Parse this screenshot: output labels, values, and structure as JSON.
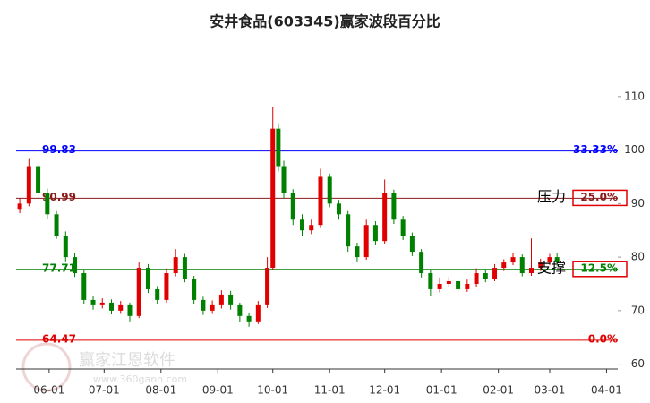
{
  "chart_data": {
    "type": "candlestick",
    "title": "安井食品(603345)赢家波段百分比",
    "xlim": [
      -18,
      315
    ],
    "ylim": [
      59.1,
      118
    ],
    "xticks": [
      {
        "value": 0,
        "label": "06-01"
      },
      {
        "value": 30,
        "label": "07-01"
      },
      {
        "value": 61,
        "label": "08-01"
      },
      {
        "value": 92,
        "label": "09-01"
      },
      {
        "value": 122,
        "label": "10-01"
      },
      {
        "value": 153,
        "label": "11-01"
      },
      {
        "value": 183,
        "label": "12-01"
      },
      {
        "value": 214,
        "label": "01-01"
      },
      {
        "value": 245,
        "label": "02-01"
      },
      {
        "value": 273,
        "label": "03-01"
      },
      {
        "value": 304,
        "label": "04-01"
      }
    ],
    "yticks": [
      60,
      70,
      80,
      90,
      100,
      110
    ],
    "up_color": "#e00000",
    "down_color": "#008000",
    "x": [
      -16,
      -11,
      -6,
      -1,
      4,
      9,
      14,
      19,
      24,
      29,
      34,
      39,
      44,
      49,
      54,
      59,
      64,
      69,
      74,
      79,
      84,
      89,
      94,
      99,
      104,
      109,
      114,
      119,
      122,
      125,
      128,
      133,
      138,
      143,
      148,
      153,
      158,
      163,
      168,
      173,
      178,
      183,
      188,
      193,
      198,
      203,
      208,
      213,
      218,
      223,
      228,
      233,
      238,
      243,
      248,
      253,
      258,
      263,
      268,
      273,
      277
    ],
    "open": [
      89,
      90,
      97,
      92,
      88,
      84,
      80,
      77,
      72,
      71,
      71.5,
      70,
      71,
      69,
      78,
      74,
      72,
      77,
      80,
      76,
      72,
      70,
      71,
      73,
      71,
      69,
      68,
      71,
      78,
      104,
      97,
      92,
      87,
      85,
      86,
      95,
      90,
      88,
      82,
      80,
      86,
      83,
      92,
      87,
      84,
      81,
      77,
      74,
      75,
      75.5,
      74,
      75,
      77,
      76,
      78,
      79,
      80,
      77,
      78,
      79,
      80
    ],
    "high": [
      91,
      98.5,
      97.8,
      92.8,
      88.6,
      84.8,
      80.7,
      77.6,
      72.8,
      72.3,
      72.1,
      71.8,
      71.5,
      79,
      78.7,
      74.6,
      77.9,
      81.5,
      80.6,
      76.5,
      72.6,
      71.9,
      73.8,
      73.7,
      71.5,
      69.6,
      71.8,
      80,
      108,
      105,
      98,
      92.7,
      88,
      87,
      96.5,
      95.6,
      90.7,
      88.6,
      82.7,
      87,
      86.7,
      94.5,
      92.6,
      87.7,
      84.6,
      81.5,
      77.6,
      76.2,
      76.3,
      76,
      75.8,
      77.9,
      77.6,
      78.7,
      79.6,
      80.8,
      80.5,
      83.5,
      79.7,
      80.6,
      80.7
    ],
    "low": [
      88.2,
      89.5,
      91,
      87.2,
      83.4,
      79.2,
      76.3,
      71.2,
      70.2,
      70.4,
      69.3,
      69.4,
      68,
      68.6,
      73.3,
      71.2,
      71.5,
      76.4,
      75.3,
      71.2,
      69.2,
      69.4,
      70.4,
      70.2,
      67.8,
      67,
      67.5,
      70.5,
      77.5,
      96,
      91,
      86,
      84,
      84.3,
      85.4,
      89.3,
      87,
      81,
      79.2,
      79.5,
      82.2,
      82.5,
      86.2,
      83.2,
      80.2,
      76.2,
      72.8,
      73.4,
      74.4,
      73.3,
      73.5,
      74.5,
      75.3,
      75.5,
      77.4,
      78.5,
      76.4,
      76.5,
      77.4,
      78.5,
      78.3
    ],
    "close": [
      90,
      97,
      92,
      88,
      84,
      80,
      77,
      72,
      71,
      71.5,
      70,
      71,
      69,
      78,
      74,
      72,
      77,
      80,
      76,
      72,
      70,
      71,
      73,
      71,
      69,
      68,
      71,
      78,
      104,
      97,
      92,
      87,
      85,
      86,
      95,
      90,
      88,
      82,
      80,
      86,
      83,
      92,
      87,
      84,
      81,
      77,
      74,
      75,
      75.5,
      74,
      75,
      77,
      76,
      78,
      79,
      80,
      77,
      78,
      79,
      80,
      79
    ],
    "levels": [
      {
        "value": 99.83,
        "percent": 33.33,
        "percent_label": "33.33%",
        "color": "#0000ff"
      },
      {
        "value": 90.99,
        "percent": 25.0,
        "percent_label": "25.0%",
        "color": "#8b1a1a"
      },
      {
        "value": 77.71,
        "percent": 12.5,
        "percent_label": "12.5%",
        "color": "#008000"
      },
      {
        "value": 64.47,
        "percent": 0.0,
        "percent_label": "0.0%",
        "color": "#e00000"
      }
    ],
    "annotations": [
      {
        "text": "压力",
        "level": 1
      },
      {
        "text": "支撑",
        "level": 2
      }
    ],
    "watermark": "赢家江恩软件",
    "watermark_url": "www.360gann.com"
  }
}
